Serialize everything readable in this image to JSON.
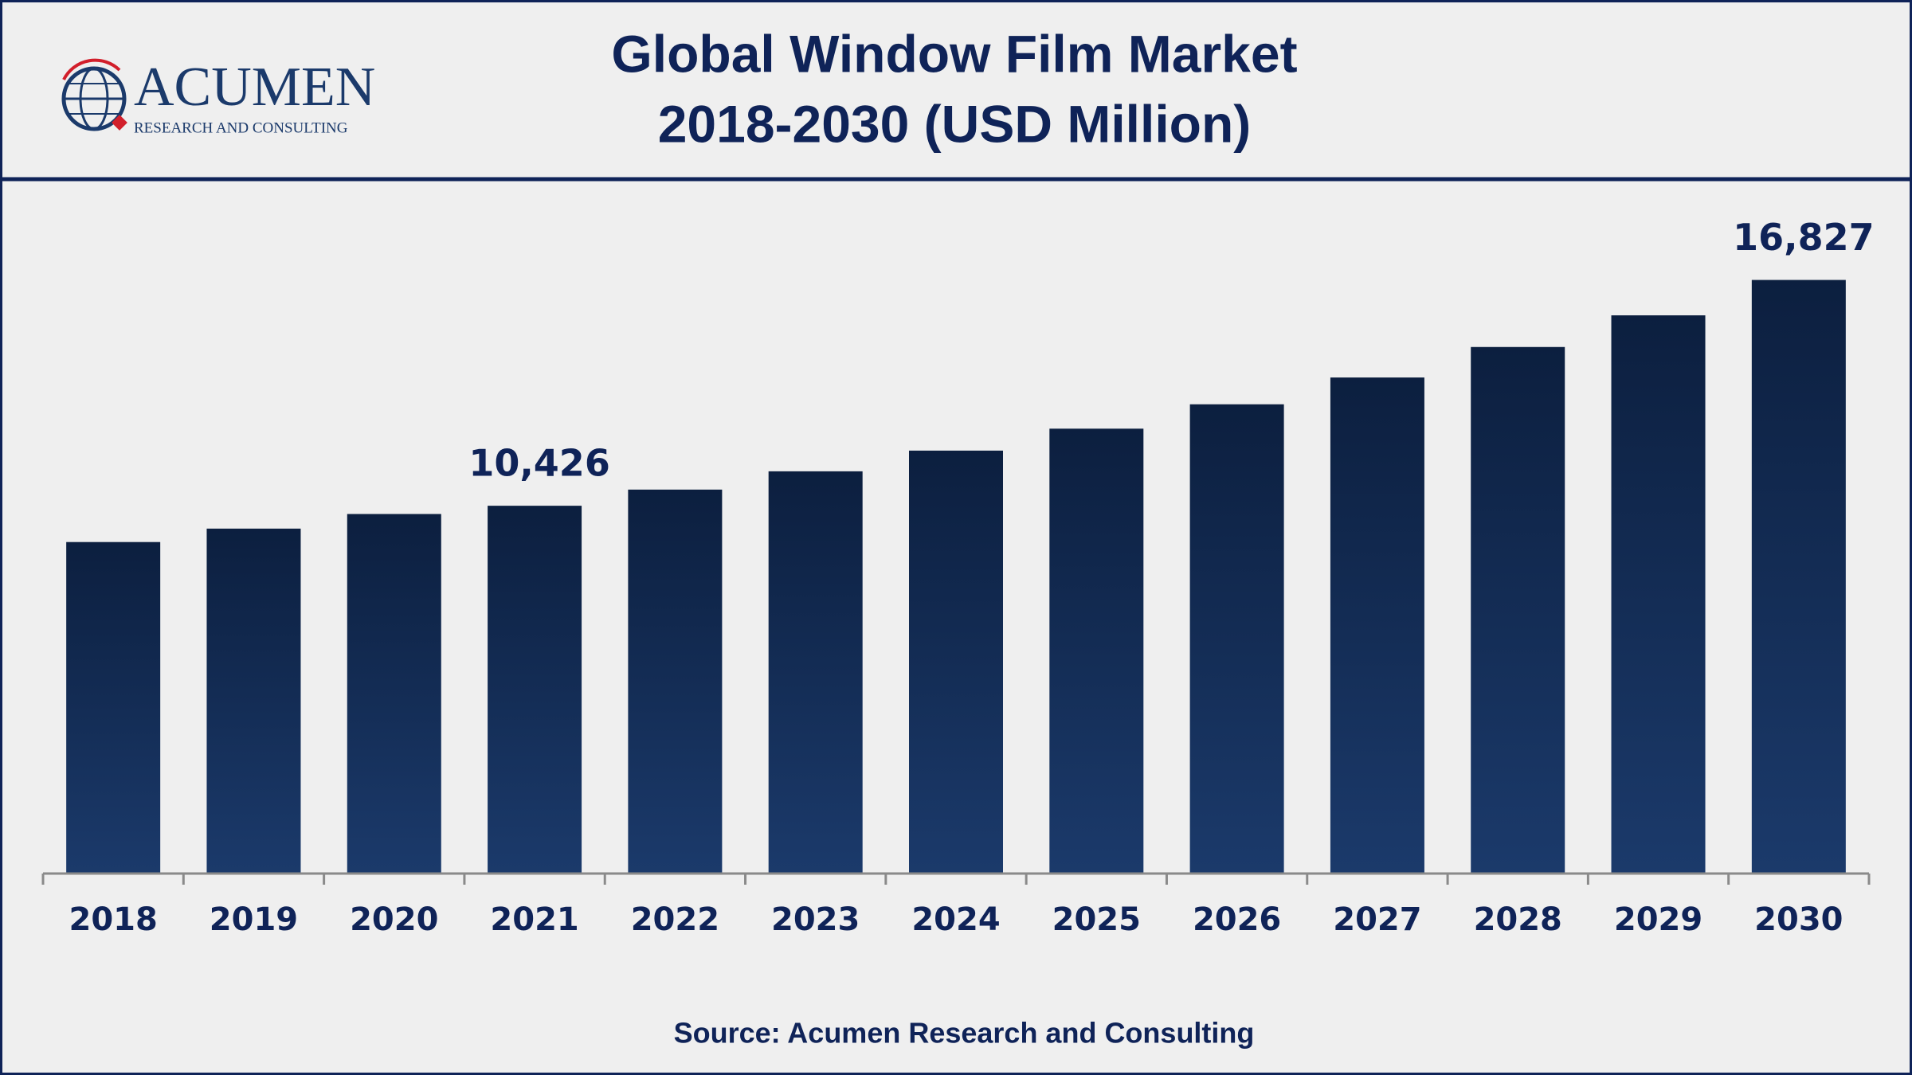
{
  "logo": {
    "name": "ACUMEN",
    "tagline": "RESEARCH AND CONSULTING"
  },
  "chart_data": {
    "type": "bar",
    "title": "Global Window Film Market",
    "subtitle": "2018-2030 (USD Million)",
    "categories": [
      "2018",
      "2019",
      "2020",
      "2021",
      "2022",
      "2023",
      "2024",
      "2025",
      "2026",
      "2027",
      "2028",
      "2029",
      "2030"
    ],
    "values": [
      9397,
      9778,
      10192,
      10426,
      10884,
      11402,
      11989,
      12611,
      13302,
      14062,
      14926,
      15824,
      16827
    ],
    "value_labels": [
      null,
      null,
      null,
      "10,426",
      null,
      null,
      null,
      null,
      null,
      null,
      null,
      null,
      "16,827"
    ],
    "color": [
      "#0c1f3f",
      "#1b3a6b"
    ],
    "ylim": [
      0,
      20000
    ],
    "source": "Source: Acumen Research and Consulting"
  }
}
